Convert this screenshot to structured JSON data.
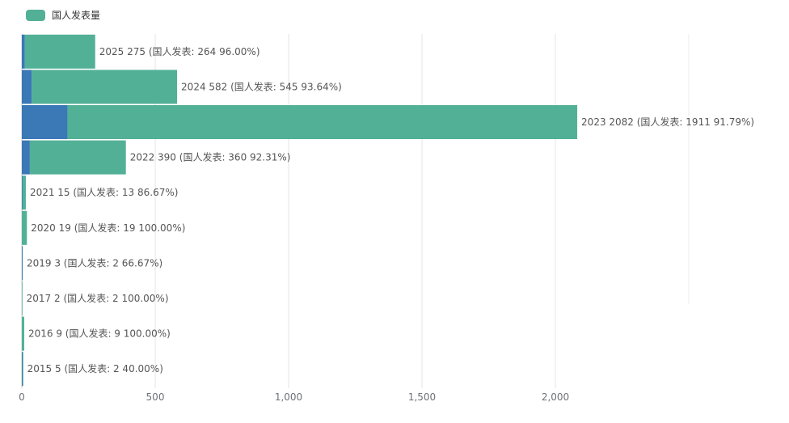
{
  "legend": {
    "label": "国人发表量",
    "color": "#52b096"
  },
  "chart_data": {
    "type": "bar",
    "orientation": "horizontal",
    "title": "",
    "xlabel": "",
    "ylabel": "",
    "xlim": [
      0,
      2500
    ],
    "x_ticks": [
      0,
      500,
      1000,
      1500,
      2000
    ],
    "x_tick_labels": [
      "0",
      "500",
      "1,000",
      "1,500",
      "2,000"
    ],
    "grid": true,
    "legend_position": "top-left",
    "categories": [
      "2025",
      "2024",
      "2023",
      "2022",
      "2021",
      "2020",
      "2019",
      "2017",
      "2016",
      "2015"
    ],
    "series": [
      {
        "name": "国人发表量",
        "values": [
          264,
          545,
          1911,
          360,
          13,
          19,
          2,
          2,
          9,
          2
        ],
        "color": "#52b096"
      },
      {
        "values": [
          11,
          37,
          171,
          30,
          2,
          0,
          1,
          0,
          0,
          3
        ],
        "color": "#3a78b6"
      }
    ],
    "totals": [
      275,
      582,
      2082,
      390,
      15,
      19,
      3,
      2,
      9,
      5
    ],
    "data_labels": [
      "2025 275 (国人发表: 264 96.00%)",
      "2024 582 (国人发表: 545 93.64%)",
      "2023 2082 (国人发表: 1911 91.79%)",
      "2022 390 (国人发表: 360 92.31%)",
      "2021 15 (国人发表: 13 86.67%)",
      "2020 19 (国人发表: 19 100.00%)",
      "2019 3 (国人发表: 2 66.67%)",
      "2017 2 (国人发表: 2 100.00%)",
      "2016 9 (国人发表: 9 100.00%)",
      "2015 5 (国人发表: 2 40.00%)"
    ]
  }
}
